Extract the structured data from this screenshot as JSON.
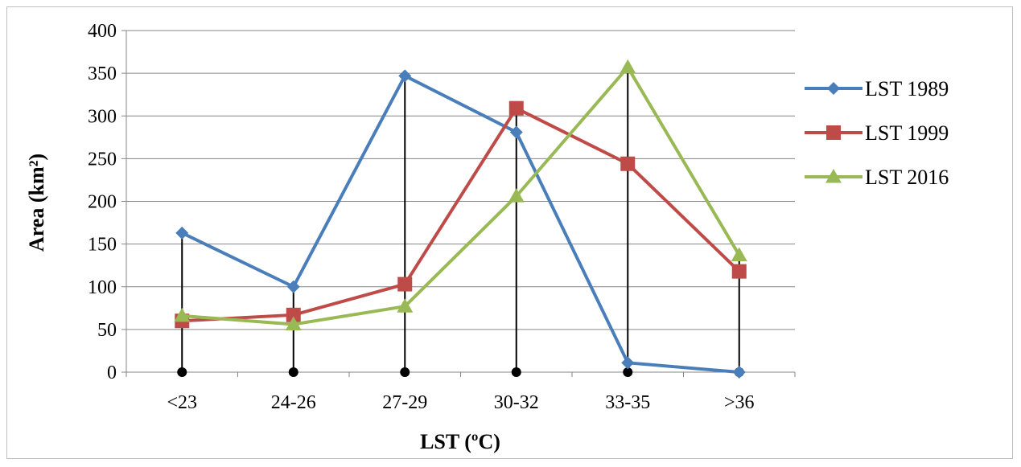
{
  "chart_data": {
    "type": "line",
    "title": "",
    "xlabel": "LST  (ºC)",
    "ylabel": "Area  (km²)",
    "categories": [
      "<23",
      "24-26",
      "27-29",
      "30-32",
      "33-35",
      ">36"
    ],
    "ylim": [
      0,
      400
    ],
    "yticks": [
      0,
      50,
      100,
      150,
      200,
      250,
      300,
      350,
      400
    ],
    "grid": true,
    "legend_position": "right",
    "drop_lines": true,
    "series": [
      {
        "name": "LST 1989",
        "values": [
          163,
          100,
          347,
          281,
          11,
          0
        ],
        "color": "#4a7ebb",
        "marker": "diamond"
      },
      {
        "name": "LST 1999",
        "values": [
          60,
          67,
          103,
          309,
          244,
          118
        ],
        "color": "#be4b48",
        "marker": "square"
      },
      {
        "name": "LST 2016",
        "values": [
          66,
          56,
          77,
          206,
          357,
          137
        ],
        "color": "#98b954",
        "marker": "triangle"
      }
    ]
  }
}
